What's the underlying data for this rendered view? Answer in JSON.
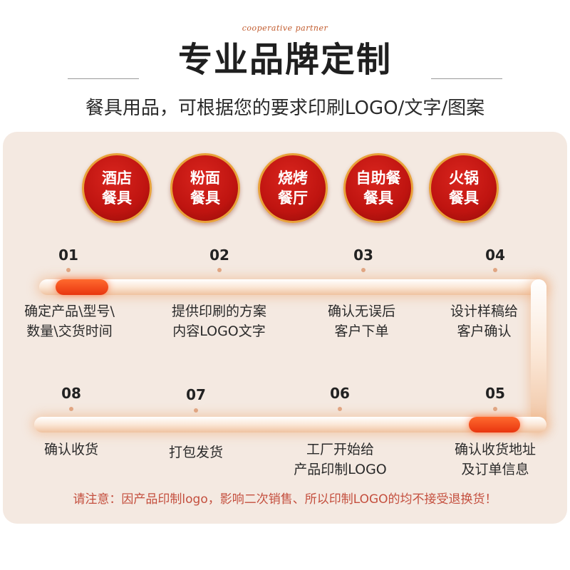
{
  "header": {
    "script_text": "cooperative partner",
    "title": "专业品牌定制",
    "subtitle": "餐具用品，可根据您的要求印刷LOGO/文字/图案"
  },
  "badges": [
    {
      "line1": "酒店",
      "line2": "餐具"
    },
    {
      "line1": "粉面",
      "line2": "餐具"
    },
    {
      "line1": "烧烤",
      "line2": "餐厅"
    },
    {
      "line1": "自助餐",
      "line2": "餐具"
    },
    {
      "line1": "火锅",
      "line2": "餐具"
    }
  ],
  "steps": [
    {
      "num": "01",
      "line1": "确定产品\\型号\\",
      "line2": "数量\\交货时间"
    },
    {
      "num": "02",
      "line1": "提供印刷的方案",
      "line2": "内容LOGO文字"
    },
    {
      "num": "03",
      "line1": "确认无误后",
      "line2": "客户下单"
    },
    {
      "num": "04",
      "line1": "设计样稿给",
      "line2": "客户确认"
    },
    {
      "num": "05",
      "line1": "确认收货地址",
      "line2": "及订单信息"
    },
    {
      "num": "06",
      "line1": "工厂开始给",
      "line2": "产品印制LOGO"
    },
    {
      "num": "07",
      "line1": "打包发货",
      "line2": ""
    },
    {
      "num": "08",
      "line1": "确认收货",
      "line2": ""
    }
  ],
  "note": "请注意：因产品印制logo，影响二次销售、所以印制LOGO的均不接受退换货！",
  "colors": {
    "badge_red": "#c8170f",
    "badge_ring": "#e8a23a",
    "panel_bg": "#f4e9e1",
    "note_red": "#c44f3e",
    "pill_orange": "#f04a1a"
  }
}
